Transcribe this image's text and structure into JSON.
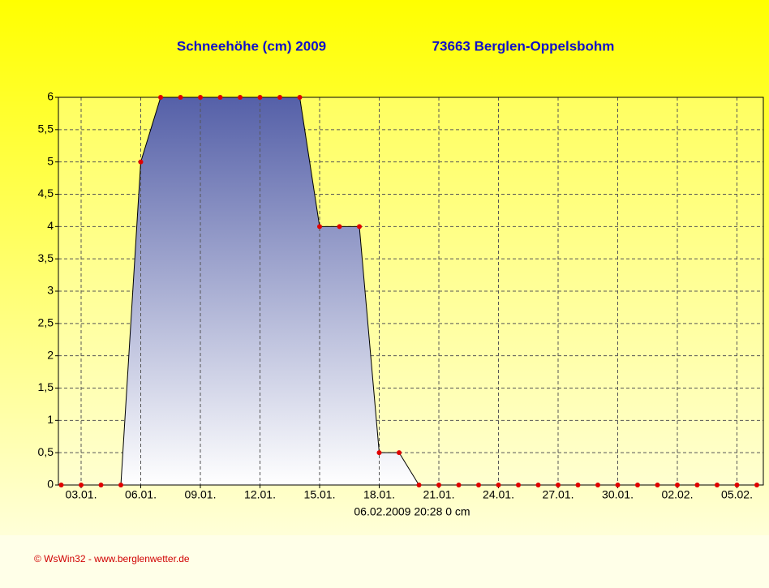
{
  "chart_data": {
    "type": "area",
    "title": "Schneehöhe (cm)  2009",
    "subtitle": "73663 Berglen-Oppelsbohm",
    "info": "06.02.2009  20:28   0 cm",
    "credit": "© WsWin32   -   www.berglenwetter.de",
    "categories": [
      null,
      "03.01.",
      null,
      null,
      "06.01.",
      null,
      null,
      "09.01.",
      null,
      null,
      "12.01.",
      null,
      null,
      "15.01.",
      null,
      null,
      "18.01.",
      null,
      null,
      "21.01.",
      null,
      null,
      "24.01.",
      null,
      null,
      "27.01.",
      null,
      null,
      "30.01.",
      null,
      null,
      "02.02.",
      null,
      null,
      "05.02.",
      null
    ],
    "values": [
      0,
      0,
      0,
      0,
      5,
      6,
      6,
      6,
      6,
      6,
      6,
      6,
      6,
      4,
      4,
      4,
      0.5,
      0.5,
      0,
      0,
      0,
      0,
      0,
      0,
      0,
      0,
      0,
      0,
      0,
      0,
      0,
      0,
      0,
      0,
      0,
      0
    ],
    "line_color": "#000000",
    "marker_color": "#e00000",
    "ylim": [
      0,
      6
    ],
    "yticks": [
      0,
      {
        "value": 0.5,
        "label": "0,5"
      },
      1,
      {
        "value": 1.5,
        "label": "1,5"
      },
      2,
      {
        "value": 2.5,
        "label": "2,5"
      },
      3,
      {
        "value": 3.5,
        "label": "3,5"
      },
      4,
      {
        "value": 4.5,
        "label": "4,5"
      },
      5,
      {
        "value": 5.5,
        "label": "5,5"
      },
      6
    ],
    "grid": true
  }
}
